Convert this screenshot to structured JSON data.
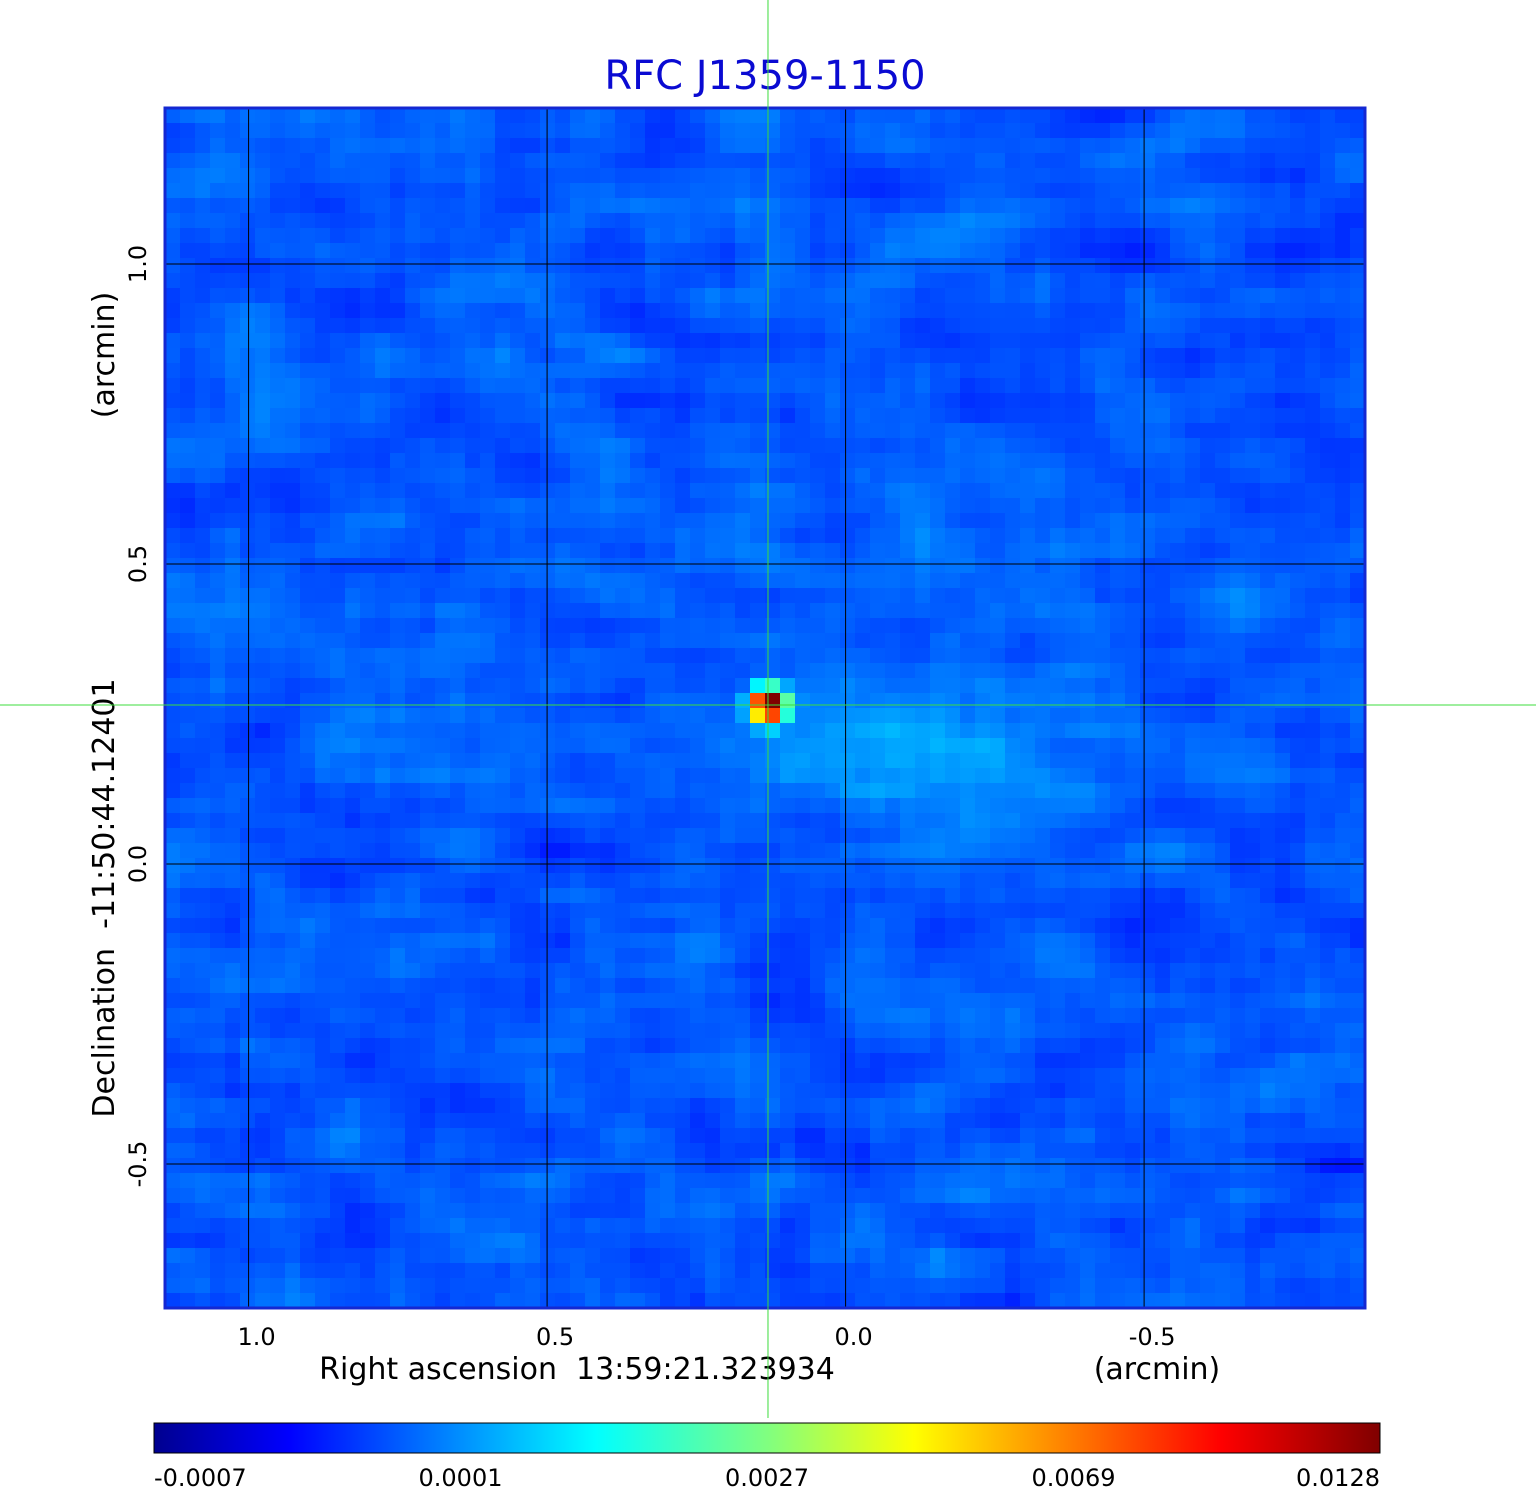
{
  "chart_data": {
    "type": "heatmap",
    "title": "RFC J1359-1150",
    "xlabel": "Right ascension  13:59:21.323934",
    "xunit": "(arcmin)",
    "ylabel": "Declination  -11:50:44.12401",
    "yunit": "(arcmin)",
    "xlim": [
      1.14,
      -0.87
    ],
    "ylim": [
      -0.74,
      1.26
    ],
    "xticks": [
      1.0,
      0.5,
      0.0,
      -0.5
    ],
    "xtick_labels": [
      "1.0",
      "0.5",
      "0.0",
      "-0.5"
    ],
    "yticks": [
      1.0,
      0.5,
      0.0,
      -0.5
    ],
    "ytick_labels": [
      "1.0",
      "0.5",
      "0.0",
      "-0.5"
    ],
    "grid": true,
    "colormap": "jet",
    "background_level": 0.0001,
    "source": {
      "x": 0.13,
      "y": 0.265,
      "peak": 0.0128
    },
    "crosshair": {
      "x": 0.13,
      "y": 0.265
    },
    "colorbar": {
      "ticks": [
        -0.0007,
        0.0001,
        0.0027,
        0.0069,
        0.0128
      ],
      "tick_labels": [
        "-0.0007",
        "0.0001",
        "0.0027",
        "0.0069",
        "0.0128"
      ]
    },
    "colors": {
      "title": "#0a0ad2",
      "frame": "#1428d2",
      "crosshair": "#3cdc3c",
      "grid": "#000000"
    }
  }
}
